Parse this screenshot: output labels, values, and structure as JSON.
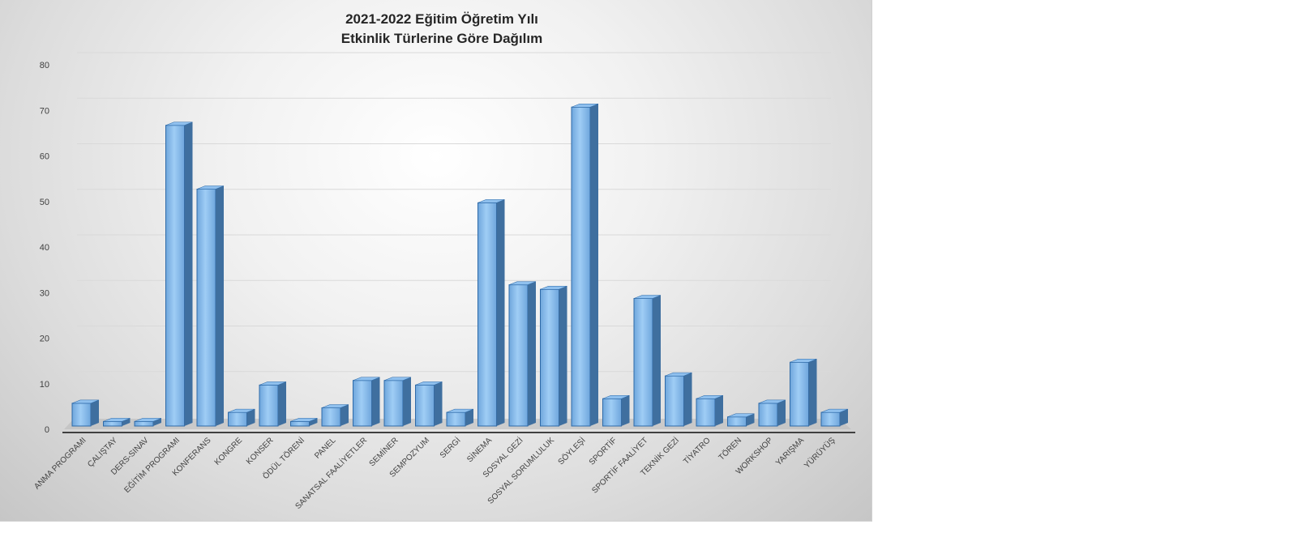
{
  "chart_data": {
    "type": "bar",
    "title": "2021-2022  Eğitim Öğretim Yılı",
    "subtitle": "Etkinlik Türlerine Göre Dağılım",
    "xlabel": "",
    "ylabel": "",
    "ylim": [
      0,
      80
    ],
    "yticks": [
      0,
      10,
      20,
      30,
      40,
      50,
      60,
      70,
      80
    ],
    "grid": true,
    "style": "3d-column",
    "colors": {
      "bar_front": "#6fa6dc",
      "bar_highlight": "#9fcdf5",
      "bar_side": "#3f6f9f",
      "bar_top": "#8fc0ee"
    },
    "categories": [
      "ANMA PROGRAMI",
      "ÇALIŞTAY",
      "DERS-SINAV",
      "EĞİTİM PROGRAMI",
      "KONFERANS",
      "KONGRE",
      "KONSER",
      "ÖDÜL TÖRENİ",
      "PANEL",
      "SANATSAL FAALİYETLER",
      "SEMİNER",
      "SEMPOZYUM",
      "SERGİ",
      "SİNEMA",
      "SOSYAL GEZİ",
      "SOSYAL SORUMLULUK",
      "SÖYLEŞİ",
      "SPORTİF",
      "SPORTİF FAALİYET",
      "TEKNİK GEZİ",
      "TİYATRO",
      "TÖREN",
      "WORKSHOP",
      "YARIŞMA",
      "YÜRÜYÜŞ"
    ],
    "values": [
      5,
      1,
      1,
      66,
      52,
      3,
      9,
      1,
      4,
      10,
      10,
      9,
      3,
      49,
      31,
      30,
      70,
      6,
      28,
      11,
      6,
      2,
      5,
      14,
      3
    ]
  }
}
